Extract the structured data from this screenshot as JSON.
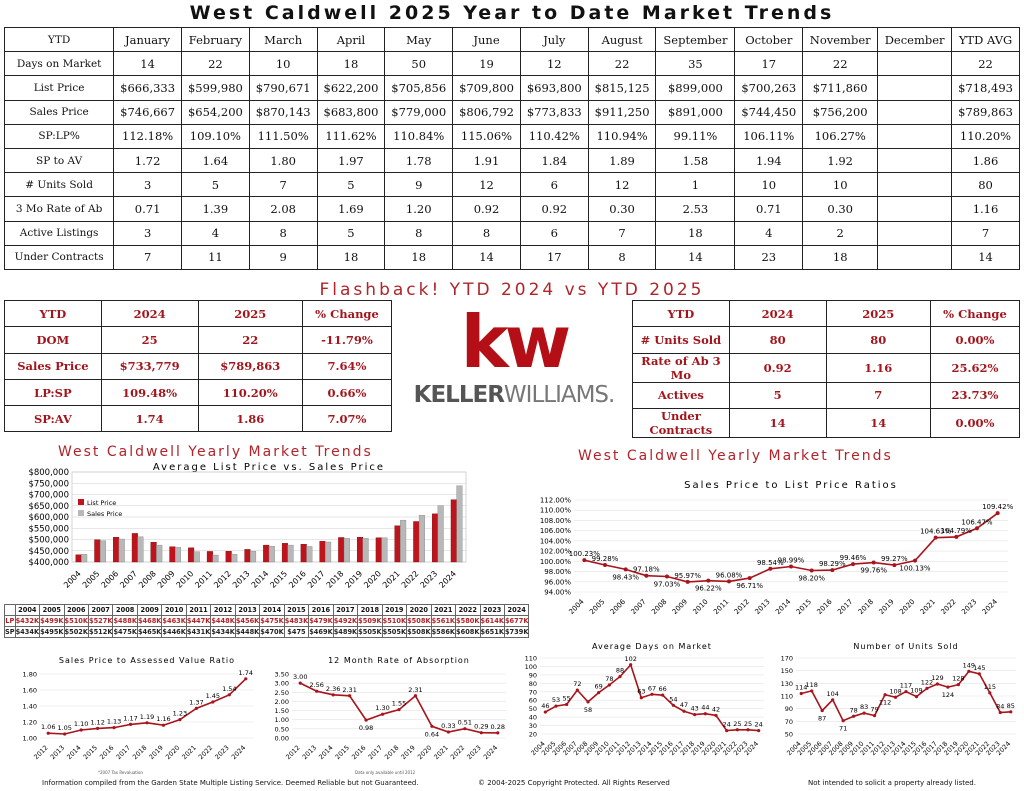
{
  "title": "West Caldwell 2025 Year to Date Market Trends",
  "ytd_table": {
    "header": [
      "YTD",
      "January",
      "February",
      "March",
      "April",
      "May",
      "June",
      "July",
      "August",
      "September",
      "October",
      "November",
      "December",
      "YTD AVG"
    ],
    "rows": [
      [
        "Days on Market",
        "14",
        "22",
        "10",
        "18",
        "50",
        "19",
        "12",
        "22",
        "35",
        "17",
        "22",
        "",
        "22"
      ],
      [
        "List Price",
        "$666,333",
        "$599,980",
        "$790,671",
        "$622,200",
        "$705,856",
        "$709,800",
        "$693,800",
        "$815,125",
        "$899,000",
        "$700,263",
        "$711,860",
        "",
        "$718,493"
      ],
      [
        "Sales Price",
        "$746,667",
        "$654,200",
        "$870,143",
        "$683,800",
        "$779,000",
        "$806,792",
        "$773,833",
        "$911,250",
        "$891,000",
        "$744,450",
        "$756,200",
        "",
        "$789,863"
      ],
      [
        "SP:LP%",
        "112.18%",
        "109.10%",
        "111.50%",
        "111.62%",
        "110.84%",
        "115.06%",
        "110.42%",
        "110.94%",
        "99.11%",
        "106.11%",
        "106.27%",
        "",
        "110.20%"
      ],
      [
        "SP to AV",
        "1.72",
        "1.64",
        "1.80",
        "1.97",
        "1.78",
        "1.91",
        "1.84",
        "1.89",
        "1.58",
        "1.94",
        "1.92",
        "",
        "1.86"
      ],
      [
        "# Units Sold",
        "3",
        "5",
        "7",
        "5",
        "9",
        "12",
        "6",
        "12",
        "1",
        "10",
        "10",
        "",
        "80"
      ],
      [
        "3 Mo Rate of Ab",
        "0.71",
        "1.39",
        "2.08",
        "1.69",
        "1.20",
        "0.92",
        "0.92",
        "0.30",
        "2.53",
        "0.71",
        "0.30",
        "",
        "1.16"
      ],
      [
        "Active Listings",
        "3",
        "4",
        "8",
        "5",
        "8",
        "8",
        "6",
        "7",
        "18",
        "4",
        "2",
        "",
        "7"
      ],
      [
        "Under Contracts",
        "7",
        "11",
        "9",
        "18",
        "18",
        "14",
        "17",
        "8",
        "14",
        "23",
        "18",
        "",
        "14"
      ]
    ]
  },
  "flashback_title": "Flashback!  YTD 2024 vs YTD 2025",
  "flash_left": {
    "header": [
      "YTD",
      "2024",
      "2025",
      "% Change"
    ],
    "rows": [
      [
        "DOM",
        "25",
        "22",
        "-11.79%"
      ],
      [
        "Sales Price",
        "$733,779",
        "$789,863",
        "7.64%"
      ],
      [
        "LP:SP",
        "109.48%",
        "110.20%",
        "0.66%"
      ],
      [
        "SP:AV",
        "1.74",
        "1.86",
        "7.07%"
      ]
    ]
  },
  "flash_right": {
    "header": [
      "YTD",
      "2024",
      "2025",
      "% Change"
    ],
    "rows": [
      [
        "# Units Sold",
        "80",
        "80",
        "0.00%"
      ],
      [
        "Rate of Ab 3 Mo",
        "0.92",
        "1.16",
        "25.62%"
      ],
      [
        "Actives",
        "5",
        "7",
        "23.73%"
      ],
      [
        "Under Contracts",
        "14",
        "14",
        "0.00%"
      ]
    ]
  },
  "logo": {
    "letters": "kw",
    "name_bold": "KELLER",
    "name_rest": "WILLIAMS."
  },
  "left_section_title": "West Caldwell Yearly Market Trends",
  "right_section_title": "West Caldwell Yearly Market Trends",
  "lp_sp_table": {
    "years": [
      "2004",
      "2005",
      "2006",
      "2007",
      "2008",
      "2009",
      "2010",
      "2011",
      "2012",
      "2013",
      "2014",
      "2015",
      "2016",
      "2017",
      "2018",
      "2019",
      "2020",
      "2021",
      "2022",
      "2023",
      "2024"
    ],
    "lp_label": "LP",
    "sp_label": "SP",
    "lp": [
      "$432K",
      "$499K",
      "$510K",
      "$527K",
      "$488K",
      "$468K",
      "$463K",
      "$447K",
      "$448K",
      "$456K",
      "$475K",
      "$483K",
      "$479K",
      "$492K",
      "$509K",
      "$510K",
      "$508K",
      "$561K",
      "$580K",
      "$614K",
      "$677K"
    ],
    "sp": [
      "$434K",
      "$495K",
      "$502K",
      "$512K",
      "$475K",
      "$465K",
      "$446K",
      "$431K",
      "$434K",
      "$448K",
      "$470K",
      "$475",
      "$469K",
      "$489K",
      "$505K",
      "$505K",
      "$508K",
      "$586K",
      "$608K",
      "$651K",
      "$739K"
    ]
  },
  "notes": {
    "sp_av_note": "*2007 Tax Revaluation",
    "abs_note": "Data only available until 2012",
    "foot_left": "Information compiled from the Garden State Multiple Listing Service.  Deemed Reliable but not Guaranteed.",
    "foot_center": "© 2004-2025 Copyright Protected.  All Rights Reserved",
    "foot_right": "Not intended to solicit a property already listed."
  },
  "colors": {
    "accent": "#b0242a",
    "list_bar": "#c0141c",
    "sales_bar": "#b8b8b8"
  },
  "chart_data": [
    {
      "type": "bar",
      "title": "Average List Price vs. Sales Price",
      "categories": [
        "2004",
        "2005",
        "2006",
        "2007",
        "2008",
        "2009",
        "2010",
        "2011",
        "2012",
        "2013",
        "2014",
        "2015",
        "2016",
        "2017",
        "2018",
        "2019",
        "2020",
        "2021",
        "2022",
        "2023",
        "2024"
      ],
      "series": [
        {
          "name": "List Price",
          "values": [
            432,
            499,
            510,
            527,
            488,
            468,
            463,
            447,
            448,
            456,
            475,
            483,
            479,
            492,
            509,
            510,
            508,
            561,
            580,
            614,
            677
          ]
        },
        {
          "name": "Sales Price",
          "values": [
            434,
            495,
            502,
            512,
            475,
            465,
            446,
            431,
            434,
            448,
            470,
            475,
            469,
            489,
            505,
            505,
            508,
            586,
            608,
            651,
            739
          ]
        }
      ],
      "ylim": [
        400,
        800
      ],
      "yticks": [
        "$400,000",
        "$450,000",
        "$500,000",
        "$550,000",
        "$600,000",
        "$650,000",
        "$700,000",
        "$750,000",
        "$800,000"
      ],
      "legend": "top-left"
    },
    {
      "type": "line",
      "title": "Sales Price to List Price Ratios",
      "x": [
        "2004",
        "2005",
        "2006",
        "2007",
        "2008",
        "2009",
        "2010",
        "2011",
        "2012",
        "2013",
        "2014",
        "2015",
        "2016",
        "2017",
        "2018",
        "2019",
        "2020",
        "2021",
        "2022",
        "2023",
        "2024"
      ],
      "values": [
        100.23,
        99.28,
        98.43,
        97.18,
        97.03,
        95.97,
        96.22,
        96.08,
        96.71,
        98.54,
        98.99,
        98.2,
        98.29,
        99.46,
        99.76,
        99.27,
        100.13,
        104.63,
        104.79,
        106.47,
        109.42
      ],
      "labels": [
        "100.23%",
        "99.28%",
        "98.43%",
        "97.18%",
        "97.03%",
        "95.97%",
        "96.22%",
        "96.08%",
        "96.71%",
        "98.54%",
        "98.99%",
        "98.20%",
        "98.29%",
        "99.46%",
        "99.76%",
        "99.27%",
        "100.13%",
        "104.63%",
        "104.79%",
        "106.47%",
        "109.42%"
      ],
      "ylim": [
        94,
        112
      ],
      "yticks": [
        "94.00%",
        "96.00%",
        "98.00%",
        "100.00%",
        "102.00%",
        "104.00%",
        "106.00%",
        "108.00%",
        "110.00%",
        "112.00%"
      ]
    },
    {
      "type": "line",
      "title": "Sales Price to Assessed Value Ratio",
      "x": [
        "2012",
        "2013",
        "2014",
        "2015",
        "2016",
        "2017",
        "2018",
        "2019",
        "2020",
        "2021",
        "2022",
        "2023",
        "2024"
      ],
      "values": [
        1.06,
        1.05,
        1.1,
        1.12,
        1.13,
        1.17,
        1.19,
        1.16,
        1.23,
        1.37,
        1.45,
        1.54,
        1.74
      ],
      "labels": [
        "1.06",
        "1.05",
        "1.10",
        "1.12",
        "1.13",
        "1.17",
        "1.19",
        "1.16",
        "1.23",
        "1.37",
        "1.45",
        "1.54",
        "1.74"
      ],
      "ylim": [
        1.0,
        1.8
      ],
      "yticks": [
        "1.00",
        "1.20",
        "1.40",
        "1.60",
        "1.80"
      ]
    },
    {
      "type": "line",
      "title": "12 Month Rate of Absorption",
      "x": [
        "2012",
        "2013",
        "2014",
        "2015",
        "2016",
        "2017",
        "2018",
        "2019",
        "2020",
        "2021",
        "2022",
        "2023",
        "2024"
      ],
      "values": [
        3.0,
        2.56,
        2.36,
        2.31,
        0.98,
        1.3,
        1.55,
        2.31,
        0.64,
        0.33,
        0.51,
        0.29,
        0.28
      ],
      "labels": [
        "3.00",
        "2.56",
        "2.36",
        "2.31",
        "0.98",
        "1.30",
        "1.55",
        "2.31",
        "0.64",
        "0.33",
        "0.51",
        "0.29",
        "0.28"
      ],
      "ylim": [
        0,
        3.5
      ],
      "yticks": [
        "0.00",
        "0.50",
        "1.00",
        "1.50",
        "2.00",
        "2.50",
        "3.00",
        "3.50"
      ]
    },
    {
      "type": "line",
      "title": "Average Days on Market",
      "x": [
        "2004",
        "2005",
        "2006",
        "2007",
        "2008",
        "2009",
        "2010",
        "2011",
        "2012",
        "2013",
        "2014",
        "2015",
        "2016",
        "2017",
        "2018",
        "2019",
        "2020",
        "2021",
        "2022",
        "2023",
        "2024"
      ],
      "values": [
        46,
        53,
        55,
        72,
        58,
        69,
        78,
        88,
        102,
        63,
        67,
        66,
        54,
        47,
        43,
        44,
        42,
        24,
        25,
        25,
        24
      ],
      "labels": [
        "46",
        "53",
        "55",
        "72",
        "58",
        "69",
        "78",
        "88",
        "102",
        "63",
        "67",
        "66",
        "54",
        "47",
        "43",
        "44",
        "42",
        "24",
        "25",
        "25",
        "24"
      ],
      "ylim": [
        20,
        110
      ],
      "yticks": [
        "20",
        "30",
        "40",
        "50",
        "60",
        "70",
        "80",
        "90",
        "100",
        "110"
      ]
    },
    {
      "type": "line",
      "title": "Number of Units Sold",
      "x": [
        "2004",
        "2005",
        "2006",
        "2007",
        "2008",
        "2009",
        "2010",
        "2011",
        "2012",
        "2013",
        "2014",
        "2015",
        "2016",
        "2017",
        "2018",
        "2019",
        "2020",
        "2021",
        "2022",
        "2023",
        "2024"
      ],
      "values": [
        114,
        118,
        87,
        104,
        71,
        78,
        83,
        79,
        112,
        108,
        117,
        109,
        122,
        129,
        124,
        128,
        149,
        145,
        115,
        84,
        85
      ],
      "labels": [
        "114",
        "118",
        "87",
        "104",
        "71",
        "78",
        "83",
        "79",
        "112",
        "108",
        "117",
        "109",
        "122",
        "129",
        "124",
        "128",
        "149",
        "145",
        "115",
        "84",
        "85"
      ],
      "ylim": [
        50,
        170
      ],
      "yticks": [
        "50",
        "70",
        "90",
        "110",
        "130",
        "150",
        "170"
      ]
    }
  ]
}
